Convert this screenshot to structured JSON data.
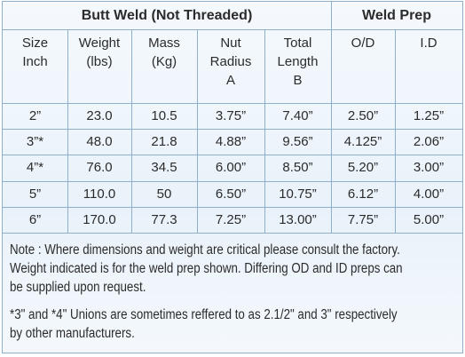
{
  "header": {
    "group1": "Butt Weld (Not Threaded)",
    "group2": "Weld Prep"
  },
  "columns": [
    [
      "Size",
      "Inch"
    ],
    [
      "Weight",
      "(lbs)"
    ],
    [
      "Mass",
      "(Kg)"
    ],
    [
      "Nut",
      "Radius",
      "A"
    ],
    [
      "Total",
      "Length",
      "B"
    ],
    [
      "O/D"
    ],
    [
      "I.D"
    ]
  ],
  "table": {
    "rows": [
      [
        "2”",
        "23.0",
        "10.5",
        "3.75”",
        "7.40”",
        "2.50”",
        "1.25”"
      ],
      [
        "3”*",
        "48.0",
        "21.8",
        "4.88”",
        "9.56”",
        "4.125”",
        "2.06”"
      ],
      [
        "4”*",
        "76.0",
        "34.5",
        "6.00”",
        "8.50”",
        "5.20”",
        "3.00”"
      ],
      [
        "5”",
        "110.0",
        "50",
        "6.50”",
        "10.75”",
        "6.12”",
        "4.00”"
      ],
      [
        "6”",
        "170.0",
        "77.3",
        "7.25”",
        "13.00”",
        "7.75”",
        "5.00”"
      ]
    ]
  },
  "notes": [
    [
      "Note : Where dimensions and weight are critical please consult the factory.",
      "Weight indicated is for the weld prep shown. Differing OD and ID preps can",
      "be supplied upon request."
    ],
    [
      "*3\" and *4\" Unions are sometimes reffered to as 2.1/2\" and 3\" respectively",
      "by other manufacturers."
    ]
  ]
}
